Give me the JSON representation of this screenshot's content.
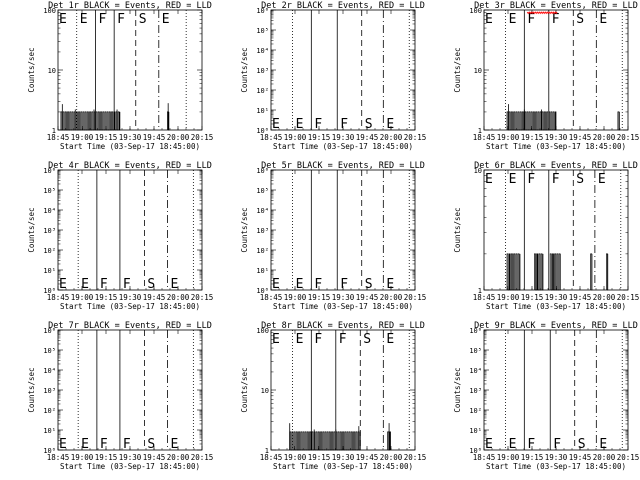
{
  "figure": {
    "background": "#ffffff",
    "event_color": "#000000",
    "lld_color": "#ff0000"
  },
  "chart_data": [
    {
      "panel": 1,
      "type": "line",
      "title": "Det 1r BLACK = Events, RED = LLD",
      "xlabel": "Start Time (03-Sep-17 18:45:00)",
      "ylabel": "Counts/sec",
      "xlim": [
        0,
        100
      ],
      "yscale": "log",
      "ylim": [
        1,
        100
      ],
      "xticks": [
        "18:45",
        "19:00",
        "19:15",
        "19:30",
        "19:45",
        "20:00",
        "20:15"
      ],
      "yticks": [
        "1",
        "10",
        "100"
      ],
      "markers": [
        {
          "x": 13,
          "label": "E",
          "style": "dotted"
        },
        {
          "x": 26,
          "label": "F",
          "style": "solid"
        },
        {
          "x": 39,
          "label": "F",
          "style": "solid"
        },
        {
          "x": 54,
          "label": "S",
          "style": "dashed"
        },
        {
          "x": 70,
          "label": "E",
          "style": "dashdot"
        },
        {
          "x": 89,
          "label": "",
          "style": "dotted"
        }
      ],
      "marker_label_pos": "top",
      "events": {
        "segments": [
          [
            2,
            43,
            2
          ],
          [
            76,
            77,
            2
          ]
        ],
        "spikes": [
          [
            3,
            2.7
          ],
          [
            12,
            2.2
          ],
          [
            25,
            2.2
          ],
          [
            41,
            2.2
          ],
          [
            76.5,
            2.8
          ]
        ]
      },
      "lld": []
    },
    {
      "panel": 2,
      "type": "line",
      "title": "Det 2r BLACK = Events, RED = LLD",
      "xlabel": "Start Time (03-Sep-17 18:45:00)",
      "ylabel": "Counts/sec",
      "xlim": [
        0,
        100
      ],
      "yscale": "log",
      "ylim": [
        1,
        1000000
      ],
      "xticks": [
        "18:45",
        "19:00",
        "19:15",
        "19:30",
        "19:45",
        "20:00",
        "20:15"
      ],
      "yticks": [
        "10⁰",
        "10¹",
        "10²",
        "10³",
        "10⁴",
        "10⁵",
        "10⁶"
      ],
      "markers": [
        {
          "x": 15,
          "label": "E",
          "style": "dotted"
        },
        {
          "x": 28,
          "label": "F",
          "style": "solid"
        },
        {
          "x": 46,
          "label": "F",
          "style": "solid"
        },
        {
          "x": 63,
          "label": "S",
          "style": "dashed"
        },
        {
          "x": 78,
          "label": "E",
          "style": "dashdot"
        },
        {
          "x": 96,
          "label": "",
          "style": "dotted"
        }
      ],
      "marker_label_pos": "bottom",
      "events": {
        "segments": [],
        "spikes": []
      },
      "lld": []
    },
    {
      "panel": 3,
      "type": "line",
      "title": "Det 3r BLACK = Events, RED = LLD",
      "xlabel": "Start Time (03-Sep-17 18:45:00)",
      "ylabel": "Counts/sec",
      "xlim": [
        0,
        100
      ],
      "yscale": "log",
      "ylim": [
        1,
        100
      ],
      "xticks": [
        "18:45",
        "19:00",
        "19:15",
        "19:30",
        "19:45",
        "20:00",
        "20:15"
      ],
      "yticks": [
        "1",
        "10",
        "100"
      ],
      "markers": [
        {
          "x": 15,
          "label": "E",
          "style": "dotted"
        },
        {
          "x": 28,
          "label": "F",
          "style": "solid"
        },
        {
          "x": 45,
          "label": "F",
          "style": "solid"
        },
        {
          "x": 62,
          "label": "S",
          "style": "dashed"
        },
        {
          "x": 78,
          "label": "E",
          "style": "dashdot"
        },
        {
          "x": 96,
          "label": "",
          "style": "dotted"
        }
      ],
      "marker_label_pos": "top",
      "events": {
        "segments": [
          [
            16,
            50,
            2
          ],
          [
            93,
            94,
            2
          ]
        ],
        "spikes": [
          [
            17,
            2.7
          ],
          [
            28,
            2.2
          ],
          [
            40,
            2.2
          ]
        ]
      },
      "lld": [
        [
          30,
          50,
          100
        ]
      ]
    },
    {
      "panel": 4,
      "type": "line",
      "title": "Det 4r BLACK = Events, RED = LLD",
      "xlabel": "Start Time (03-Sep-17 18:45:00)",
      "ylabel": "Counts/sec",
      "xlim": [
        0,
        100
      ],
      "yscale": "log",
      "ylim": [
        1,
        1000000
      ],
      "xticks": [
        "18:45",
        "19:00",
        "19:15",
        "19:30",
        "19:45",
        "20:00",
        "20:15"
      ],
      "yticks": [
        "10⁰",
        "10¹",
        "10²",
        "10³",
        "10⁴",
        "10⁵",
        "10⁶"
      ],
      "markers": [
        {
          "x": 14,
          "label": "E",
          "style": "dotted"
        },
        {
          "x": 27,
          "label": "F",
          "style": "solid"
        },
        {
          "x": 43,
          "label": "F",
          "style": "solid"
        },
        {
          "x": 60,
          "label": "S",
          "style": "dashed"
        },
        {
          "x": 76,
          "label": "E",
          "style": "dashdot"
        },
        {
          "x": 94,
          "label": "",
          "style": "dotted"
        }
      ],
      "marker_label_pos": "bottom",
      "events": {
        "segments": [],
        "spikes": []
      },
      "lld": []
    },
    {
      "panel": 5,
      "type": "line",
      "title": "Det 5r BLACK = Events, RED = LLD",
      "xlabel": "Start Time (03-Sep-17 18:45:00)",
      "ylabel": "Counts/sec",
      "xlim": [
        0,
        100
      ],
      "yscale": "log",
      "ylim": [
        1,
        1000000
      ],
      "xticks": [
        "18:45",
        "19:00",
        "19:15",
        "19:30",
        "19:45",
        "20:00",
        "20:15"
      ],
      "yticks": [
        "10⁰",
        "10¹",
        "10²",
        "10³",
        "10⁴",
        "10⁵",
        "10⁶"
      ],
      "markers": [
        {
          "x": 15,
          "label": "E",
          "style": "dotted"
        },
        {
          "x": 28,
          "label": "F",
          "style": "solid"
        },
        {
          "x": 46,
          "label": "F",
          "style": "solid"
        },
        {
          "x": 63,
          "label": "S",
          "style": "dashed"
        },
        {
          "x": 78,
          "label": "E",
          "style": "dashdot"
        },
        {
          "x": 96,
          "label": "",
          "style": "dotted"
        }
      ],
      "marker_label_pos": "bottom",
      "events": {
        "segments": [],
        "spikes": []
      },
      "lld": []
    },
    {
      "panel": 6,
      "type": "line",
      "title": "Det 6r BLACK = Events, RED = LLD",
      "xlabel": "Start Time (03-Sep-17 18:45:00)",
      "ylabel": "Counts/sec",
      "xlim": [
        0,
        100
      ],
      "yscale": "log",
      "ylim": [
        1,
        10
      ],
      "xticks": [
        "18:45",
        "19:00",
        "19:15",
        "19:30",
        "19:45",
        "20:00",
        "20:15"
      ],
      "yticks": [
        "1",
        "10"
      ],
      "markers": [
        {
          "x": 15,
          "label": "E",
          "style": "dotted"
        },
        {
          "x": 28,
          "label": "F",
          "style": "solid"
        },
        {
          "x": 45,
          "label": "F",
          "style": "solid"
        },
        {
          "x": 62,
          "label": "S",
          "style": "dashed"
        },
        {
          "x": 77,
          "label": "E",
          "style": "dashdot"
        },
        {
          "x": 95,
          "label": "",
          "style": "dotted"
        }
      ],
      "marker_label_pos": "top",
      "events": {
        "segments": [
          [
            16,
            25,
            2
          ],
          [
            35,
            41,
            2
          ],
          [
            46,
            53,
            2
          ],
          [
            74,
            75,
            2
          ],
          [
            85,
            86,
            2
          ]
        ],
        "spikes": [
          [
            18,
            2
          ],
          [
            37,
            2
          ],
          [
            48,
            2
          ]
        ]
      },
      "lld": []
    },
    {
      "panel": 7,
      "type": "line",
      "title": "Det 7r BLACK = Events, RED = LLD",
      "xlabel": "Start Time (03-Sep-17 18:45:00)",
      "ylabel": "Counts/sec",
      "xlim": [
        0,
        100
      ],
      "yscale": "log",
      "ylim": [
        1,
        1000000
      ],
      "xticks": [
        "18:45",
        "19:00",
        "19:15",
        "19:30",
        "19:45",
        "20:00",
        "20:15"
      ],
      "yticks": [
        "10⁰",
        "10¹",
        "10²",
        "10³",
        "10⁴",
        "10⁵",
        "10⁶"
      ],
      "markers": [
        {
          "x": 14,
          "label": "E",
          "style": "dotted"
        },
        {
          "x": 27,
          "label": "F",
          "style": "solid"
        },
        {
          "x": 43,
          "label": "F",
          "style": "solid"
        },
        {
          "x": 60,
          "label": "S",
          "style": "dashed"
        },
        {
          "x": 76,
          "label": "E",
          "style": "dashdot"
        },
        {
          "x": 94,
          "label": "",
          "style": "dotted"
        }
      ],
      "marker_label_pos": "bottom",
      "events": {
        "segments": [],
        "spikes": []
      },
      "lld": []
    },
    {
      "panel": 8,
      "type": "line",
      "title": "Det 8r BLACK = Events, RED = LLD",
      "xlabel": "Start Time (03-Sep-17 18:45:00)",
      "ylabel": "Counts/sec",
      "xlim": [
        0,
        100
      ],
      "yscale": "log",
      "ylim": [
        1,
        100
      ],
      "xticks": [
        "18:45",
        "19:00",
        "19:15",
        "19:30",
        "19:45",
        "20:00",
        "20:15"
      ],
      "yticks": [
        "1",
        "10",
        "100"
      ],
      "markers": [
        {
          "x": 15,
          "label": "E",
          "style": "dotted"
        },
        {
          "x": 28,
          "label": "F",
          "style": "solid"
        },
        {
          "x": 45,
          "label": "F",
          "style": "solid"
        },
        {
          "x": 62,
          "label": "S",
          "style": "dashed"
        },
        {
          "x": 78,
          "label": "E",
          "style": "dashdot"
        },
        {
          "x": 96,
          "label": "",
          "style": "dotted"
        }
      ],
      "marker_label_pos": "top",
      "events": {
        "segments": [
          [
            13,
            62,
            2
          ],
          [
            81,
            83,
            2
          ]
        ],
        "spikes": [
          [
            13,
            2.8
          ],
          [
            30,
            2.2
          ],
          [
            45,
            2.2
          ],
          [
            61,
            2.5
          ],
          [
            82,
            2.8
          ]
        ]
      },
      "lld": []
    },
    {
      "panel": 9,
      "type": "line",
      "title": "Det 9r BLACK = Events, RED = LLD",
      "xlabel": "Start Time (03-Sep-17 18:45:00)",
      "ylabel": "Counts/sec",
      "xlim": [
        0,
        100
      ],
      "yscale": "log",
      "ylim": [
        1,
        1000000
      ],
      "xticks": [
        "18:45",
        "19:00",
        "19:15",
        "19:30",
        "19:45",
        "20:00",
        "20:15"
      ],
      "yticks": [
        "10⁰",
        "10¹",
        "10²",
        "10³",
        "10⁴",
        "10⁵",
        "10⁶"
      ],
      "markers": [
        {
          "x": 15,
          "label": "E",
          "style": "dotted"
        },
        {
          "x": 28,
          "label": "F",
          "style": "solid"
        },
        {
          "x": 46,
          "label": "F",
          "style": "solid"
        },
        {
          "x": 63,
          "label": "S",
          "style": "dashed"
        },
        {
          "x": 78,
          "label": "E",
          "style": "dashdot"
        },
        {
          "x": 96,
          "label": "",
          "style": "dotted"
        }
      ],
      "marker_label_pos": "bottom",
      "events": {
        "segments": [],
        "spikes": []
      },
      "lld": []
    }
  ]
}
